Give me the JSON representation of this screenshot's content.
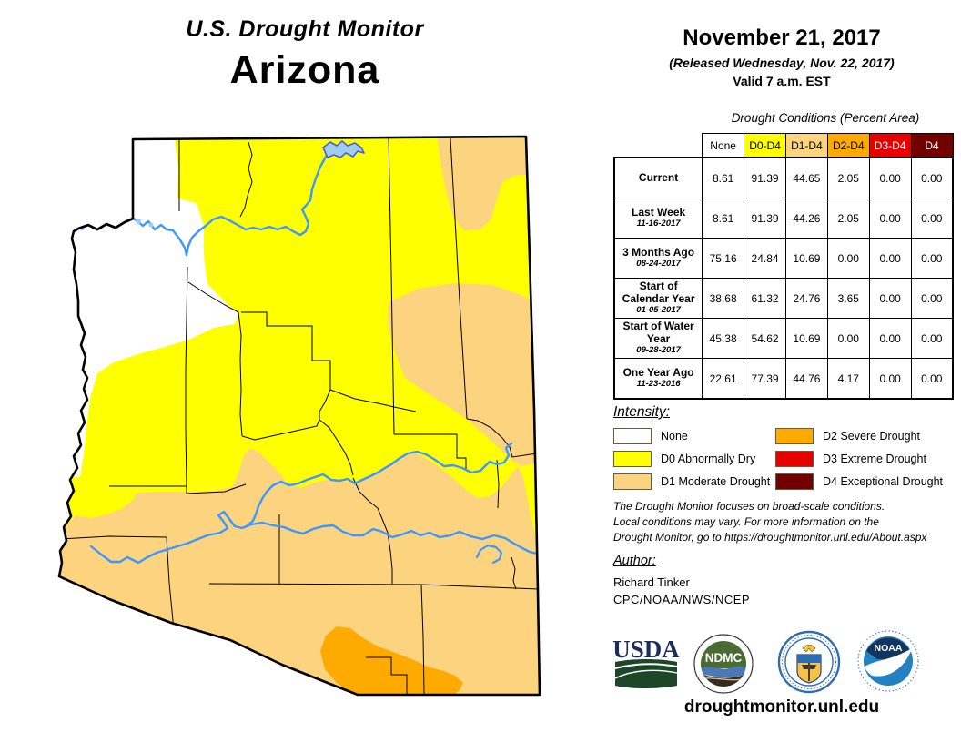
{
  "title": {
    "line1": "U.S. Drought Monitor",
    "line2": "Arizona"
  },
  "date_block": {
    "date": "November 21, 2017",
    "released": "(Released Wednesday, Nov. 22, 2017)",
    "valid": "Valid 7 a.m. EST"
  },
  "table": {
    "caption": "Drought Conditions (Percent Area)",
    "columns": [
      "None",
      "D0-D4",
      "D1-D4",
      "D2-D4",
      "D3-D4",
      "D4"
    ],
    "header_colors": [
      "#FFFFFF",
      "#FFFF00",
      "#FCD37F",
      "#FFAA00",
      "#E60000",
      "#730000"
    ],
    "header_text_colors": [
      "#000000",
      "#000000",
      "#000000",
      "#000000",
      "#FFFFFF",
      "#FFFFFF"
    ],
    "rows": [
      {
        "label": "Current",
        "sublabel": "",
        "values": [
          "8.61",
          "91.39",
          "44.65",
          "2.05",
          "0.00",
          "0.00"
        ]
      },
      {
        "label": "Last Week",
        "sublabel": "11-16-2017",
        "values": [
          "8.61",
          "91.39",
          "44.26",
          "2.05",
          "0.00",
          "0.00"
        ]
      },
      {
        "label": "3 Months Ago",
        "sublabel": "08-24-2017",
        "values": [
          "75.16",
          "24.84",
          "10.69",
          "0.00",
          "0.00",
          "0.00"
        ]
      },
      {
        "label": "Start of Calendar Year",
        "sublabel": "01-05-2017",
        "values": [
          "38.68",
          "61.32",
          "24.76",
          "3.65",
          "0.00",
          "0.00"
        ]
      },
      {
        "label": "Start of Water Year",
        "sublabel": "09-28-2017",
        "values": [
          "45.38",
          "54.62",
          "10.69",
          "0.00",
          "0.00",
          "0.00"
        ]
      },
      {
        "label": "One Year Ago",
        "sublabel": "11-23-2016",
        "values": [
          "22.61",
          "77.39",
          "44.76",
          "4.17",
          "0.00",
          "0.00"
        ]
      }
    ]
  },
  "legend": {
    "heading": "Intensity:",
    "items": [
      {
        "label": "None",
        "color": "#FFFFFF"
      },
      {
        "label": "D0 Abnormally Dry",
        "color": "#FFFF00"
      },
      {
        "label": "D1 Moderate Drought",
        "color": "#FCD37F"
      },
      {
        "label": "D2 Severe Drought",
        "color": "#FFAA00"
      },
      {
        "label": "D3 Extreme Drought",
        "color": "#E60000"
      },
      {
        "label": "D4 Exceptional Drought",
        "color": "#730000"
      }
    ]
  },
  "disclaimer": {
    "line1": "The Drought Monitor focuses on broad-scale conditions.",
    "line2": "Local conditions may vary. For more information on the",
    "line3": "Drought Monitor, go to https://droughtmonitor.unl.edu/About.aspx"
  },
  "author": {
    "heading": "Author:",
    "name": "Richard Tinker",
    "org": "CPC/NOAA/NWS/NCEP"
  },
  "footer": {
    "url": "droughtmonitor.unl.edu"
  },
  "logos": {
    "usda_text": "USDA",
    "ndmc_text": "NDMC",
    "noaa_text": "NOAA"
  },
  "map": {
    "state": "Arizona",
    "fill_none": "#FFFFFF",
    "fill_d0": "#FFFF00",
    "fill_d1": "#FCD37F",
    "fill_d2": "#FFAA00",
    "river": "#3E97FF",
    "river_dark": "#4A5FD0",
    "lake": "#9FCDF2",
    "outline": "#000000"
  }
}
